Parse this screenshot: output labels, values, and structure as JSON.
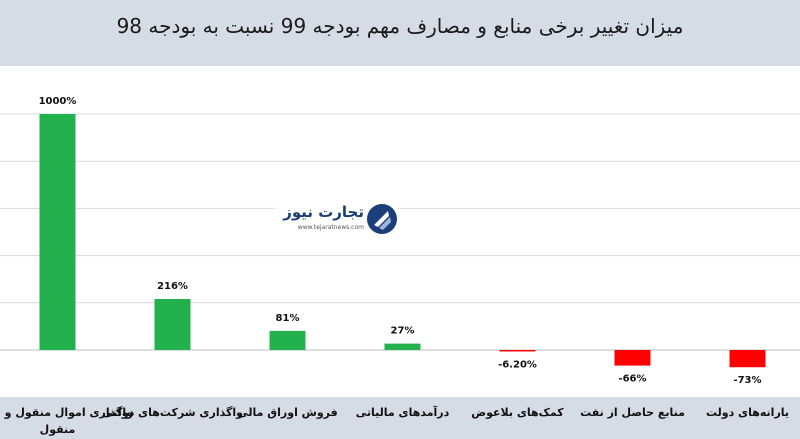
{
  "header": {
    "title": "میزان تغییر برخی منابع و مصارف مهم بودجه 99 نسبت به بودجه 98"
  },
  "watermark": {
    "brand": "تجارت نیوز",
    "url": "www.tejaratnews.com"
  },
  "colors": {
    "header_bg": "#d6dce5",
    "positive": "#22b14c",
    "negative": "#ff0000",
    "gridline": "#d9d9d9"
  },
  "chart_data": {
    "type": "bar",
    "title": "میزان تغییر برخی منابع و مصارف مهم بودجه 99 نسبت به بودجه 98",
    "xlabel": "",
    "ylabel": "",
    "ylim": [
      -100,
      1000
    ],
    "grid": true,
    "legend": "none",
    "categories": [
      "واگذاری اموال منقول و غیر منقول",
      "واگذاری شرکت‌های دولتی",
      "فروش اوراق مالی",
      "درآمدهای مالیاتی",
      "کمک‌های بلاعوض",
      "منابع حاصل از نفت",
      "یارانه‌های دولت"
    ],
    "values": [
      1000,
      216,
      81,
      27,
      -6.2,
      -66,
      -73
    ],
    "data_labels": [
      "1000%",
      "216%",
      "81%",
      "27%",
      "-6.20%",
      "-66%",
      "-73%"
    ]
  }
}
